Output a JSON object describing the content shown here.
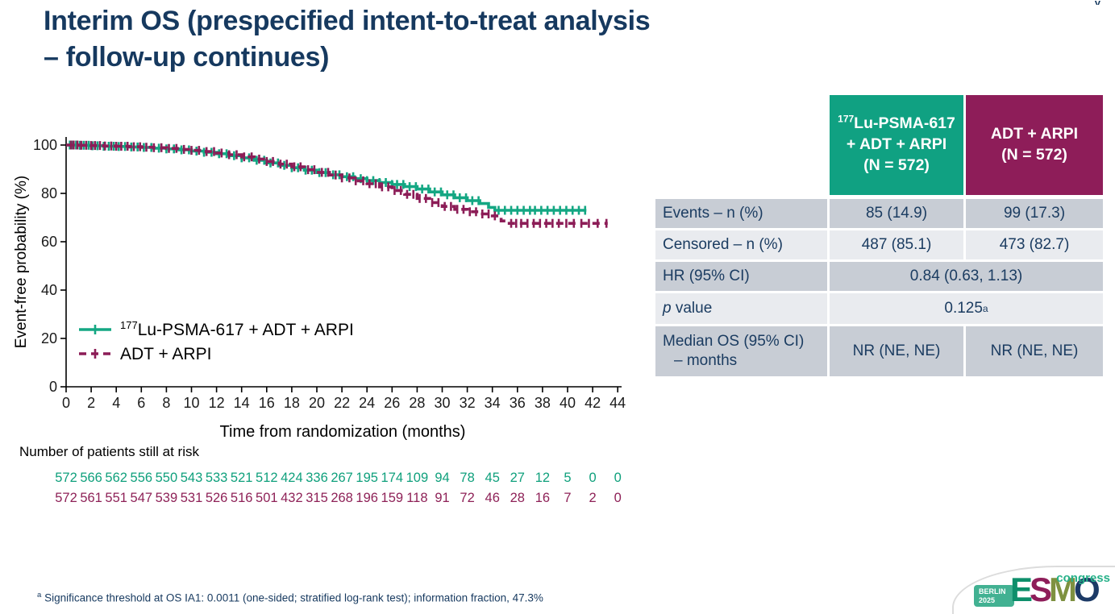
{
  "fragment_top_right": "y",
  "title": {
    "line1": "Interim OS (prespecified intent-to-treat analysis",
    "line2": "– follow-up continues)"
  },
  "chart_data": {
    "type": "line",
    "subtype": "kaplan-meier-step",
    "xlabel": "Time from randomization (months)",
    "ylabel": "Event-free probability (%)",
    "xlim": [
      0,
      44
    ],
    "ylim": [
      0,
      100
    ],
    "x_ticks": [
      0,
      2,
      4,
      6,
      8,
      10,
      12,
      14,
      16,
      18,
      20,
      22,
      24,
      26,
      28,
      30,
      32,
      34,
      36,
      38,
      40,
      42,
      44
    ],
    "y_ticks": [
      0,
      20,
      40,
      60,
      80,
      100
    ],
    "grid": false,
    "legend_position": "lower-left",
    "series": [
      {
        "name_sup": "177",
        "name": "Lu-PSMA-617 + ADT + ARPI",
        "color": "#14a783",
        "style": "solid",
        "steps": [
          [
            0,
            100
          ],
          [
            1,
            99.9
          ],
          [
            2,
            99.7
          ],
          [
            3,
            99.5
          ],
          [
            4,
            99.4
          ],
          [
            5,
            99.2
          ],
          [
            6,
            99.0
          ],
          [
            7,
            98.7
          ],
          [
            8,
            98.4
          ],
          [
            9,
            98.0
          ],
          [
            10,
            97.5
          ],
          [
            11,
            97.0
          ],
          [
            12,
            96.4
          ],
          [
            13,
            95.6
          ],
          [
            14,
            94.7
          ],
          [
            15,
            93.7
          ],
          [
            16,
            92.6
          ],
          [
            17,
            91.6
          ],
          [
            18,
            90.6
          ],
          [
            19,
            89.6
          ],
          [
            20,
            88.6
          ],
          [
            21,
            87.7
          ],
          [
            22,
            86.9
          ],
          [
            23,
            86.1
          ],
          [
            24,
            85.3
          ],
          [
            25,
            84.5
          ],
          [
            26,
            83.7
          ],
          [
            27,
            82.8
          ],
          [
            28,
            81.8
          ],
          [
            29,
            80.6
          ],
          [
            30,
            79.4
          ],
          [
            31,
            78.2
          ],
          [
            32,
            77.0
          ],
          [
            33,
            75.8
          ],
          [
            33.7,
            74.2
          ],
          [
            34.2,
            73.0
          ],
          [
            41.5,
            73.0
          ]
        ],
        "censor_months": [
          0.3,
          0.5,
          0.8,
          1.1,
          1.4,
          1.8,
          2.1,
          2.5,
          3.0,
          3.4,
          3.8,
          4.2,
          4.7,
          5.2,
          5.7,
          6.2,
          6.8,
          7.4,
          8.0,
          8.6,
          9.2,
          9.8,
          10.4,
          11.0,
          11.6,
          12.2,
          12.8,
          13.4,
          14.0,
          14.6,
          15.2,
          15.8,
          16.3,
          16.9,
          17.4,
          18.0,
          18.5,
          19.1,
          19.6,
          20.2,
          20.7,
          21.3,
          21.8,
          22.4,
          22.9,
          23.5,
          24.0,
          24.5,
          25.0,
          25.5,
          26.0,
          26.4,
          26.9,
          27.4,
          27.9,
          28.4,
          28.9,
          29.4,
          29.9,
          30.4,
          30.9,
          31.4,
          31.9,
          32.4,
          32.9,
          34.5,
          35.0,
          35.5,
          36.0,
          36.5,
          37.0,
          37.4,
          37.9,
          38.4,
          38.9,
          39.4,
          39.9,
          40.4,
          40.9,
          41.4
        ]
      },
      {
        "name_sup": "",
        "name": "ADT + ARPI",
        "color": "#8c1d57",
        "style": "dashed",
        "steps": [
          [
            0,
            100
          ],
          [
            1,
            99.9
          ],
          [
            2,
            99.8
          ],
          [
            3,
            99.6
          ],
          [
            4,
            99.5
          ],
          [
            5,
            99.3
          ],
          [
            6,
            99.1
          ],
          [
            7,
            98.9
          ],
          [
            8,
            98.6
          ],
          [
            9,
            98.2
          ],
          [
            10,
            97.8
          ],
          [
            11,
            97.3
          ],
          [
            12,
            96.7
          ],
          [
            13,
            96.0
          ],
          [
            14,
            95.1
          ],
          [
            15,
            94.2
          ],
          [
            16,
            93.2
          ],
          [
            17,
            92.1
          ],
          [
            18,
            91.0
          ],
          [
            19,
            89.8
          ],
          [
            20,
            88.7
          ],
          [
            21,
            87.6
          ],
          [
            22,
            86.4
          ],
          [
            23,
            85.2
          ],
          [
            24,
            84.0
          ],
          [
            25,
            82.7
          ],
          [
            26,
            81.2
          ],
          [
            27,
            79.6
          ],
          [
            28,
            77.9
          ],
          [
            29,
            76.2
          ],
          [
            30,
            74.6
          ],
          [
            31,
            73.4
          ],
          [
            32,
            72.4
          ],
          [
            33,
            71.5
          ],
          [
            34,
            70.7
          ],
          [
            34.7,
            68.6
          ],
          [
            35.2,
            67.6
          ],
          [
            43.2,
            67.6
          ]
        ],
        "censor_months": [
          0.4,
          0.6,
          0.9,
          1.2,
          1.6,
          2.0,
          2.3,
          2.7,
          3.1,
          3.6,
          4.0,
          4.4,
          4.9,
          5.4,
          5.9,
          6.4,
          7.0,
          7.6,
          8.2,
          8.8,
          9.4,
          10.0,
          10.6,
          11.2,
          11.8,
          12.4,
          13.0,
          13.6,
          14.2,
          14.8,
          15.4,
          16.0,
          16.5,
          17.1,
          17.6,
          18.2,
          18.7,
          19.3,
          19.8,
          20.4,
          20.9,
          21.5,
          22.0,
          22.6,
          23.1,
          23.7,
          24.2,
          24.7,
          25.2,
          25.7,
          26.2,
          26.7,
          27.2,
          27.7,
          28.2,
          28.7,
          29.2,
          29.7,
          30.2,
          30.7,
          31.2,
          31.7,
          32.2,
          32.7,
          33.2,
          33.7,
          34.2,
          35.5,
          35.9,
          36.3,
          36.8,
          37.3,
          37.8,
          38.3,
          38.8,
          39.3,
          39.9,
          40.5,
          41.1,
          41.7,
          42.4,
          43.1
        ]
      }
    ]
  },
  "risk_table": {
    "heading": "Number of patients still at risk",
    "months": [
      0,
      2,
      4,
      6,
      8,
      10,
      12,
      14,
      16,
      18,
      20,
      22,
      24,
      26,
      28,
      30,
      32,
      34,
      36,
      38,
      40,
      42,
      44
    ],
    "rows": [
      {
        "arm": "177Lu-PSMA-617 + ADT + ARPI",
        "color": "#0fa07c",
        "values": [
          572,
          566,
          562,
          556,
          550,
          543,
          533,
          521,
          512,
          424,
          336,
          267,
          195,
          174,
          109,
          94,
          78,
          45,
          27,
          12,
          5,
          0,
          0
        ]
      },
      {
        "arm": "ADT + ARPI",
        "color": "#8e2157",
        "values": [
          572,
          561,
          551,
          547,
          539,
          531,
          526,
          516,
          501,
          432,
          315,
          268,
          196,
          159,
          118,
          91,
          72,
          46,
          28,
          16,
          7,
          2,
          0
        ]
      }
    ]
  },
  "summary_table": {
    "headers": [
      {
        "sup": "177",
        "lines": [
          "Lu-PSMA-617",
          "+ ADT + ARPI",
          "(N = 572)"
        ],
        "bg": "#10a182"
      },
      {
        "sup": "",
        "lines": [
          "ADT + ARPI",
          "(N = 572)"
        ],
        "bg": "#8e1d59"
      }
    ],
    "rows": [
      {
        "label": "Events – n (%)",
        "italic_first_word": false,
        "span": false,
        "shade": "dark",
        "values": [
          "85 (14.9)",
          "99 (17.3)"
        ],
        "value_sup": ""
      },
      {
        "label": "Censored – n (%)",
        "italic_first_word": false,
        "span": false,
        "shade": "light",
        "values": [
          "487 (85.1)",
          "473 (82.7)"
        ],
        "value_sup": ""
      },
      {
        "label": "HR (95% CI)",
        "italic_first_word": false,
        "span": true,
        "shade": "dark",
        "values": [
          "0.84 (0.63, 1.13)"
        ],
        "value_sup": ""
      },
      {
        "label": "p value",
        "italic_first_word": true,
        "span": true,
        "shade": "light",
        "values": [
          "0.125"
        ],
        "value_sup": "a"
      },
      {
        "label": "Median OS (95% CI)",
        "label_line2": "– months",
        "italic_first_word": false,
        "span": false,
        "shade": "dark",
        "values": [
          "NR (NE, NE)",
          "NR (NE, NE)"
        ],
        "value_sup": ""
      }
    ]
  },
  "footnote": {
    "sup": "a",
    "text": "Significance threshold at OS IA1: 0.0011 (one-sided; stratified log-rank test); information fraction, 47.3%"
  },
  "logo": {
    "badge_line1": "BERLIN",
    "badge_line2": "2025",
    "badge_bg": "#42b192",
    "letters": [
      {
        "ch": "E",
        "color": "#0e8f6b"
      },
      {
        "ch": "S",
        "color": "#8e1d59"
      },
      {
        "ch": "M",
        "color": "#7e9140"
      },
      {
        "ch": "O",
        "color": "#1c3a66"
      }
    ],
    "congress": "congress"
  },
  "colors": {
    "navy_text": "#16395f",
    "row_dark": "#c8cdd5",
    "row_light": "#e9ebef",
    "axis": "#000000"
  }
}
